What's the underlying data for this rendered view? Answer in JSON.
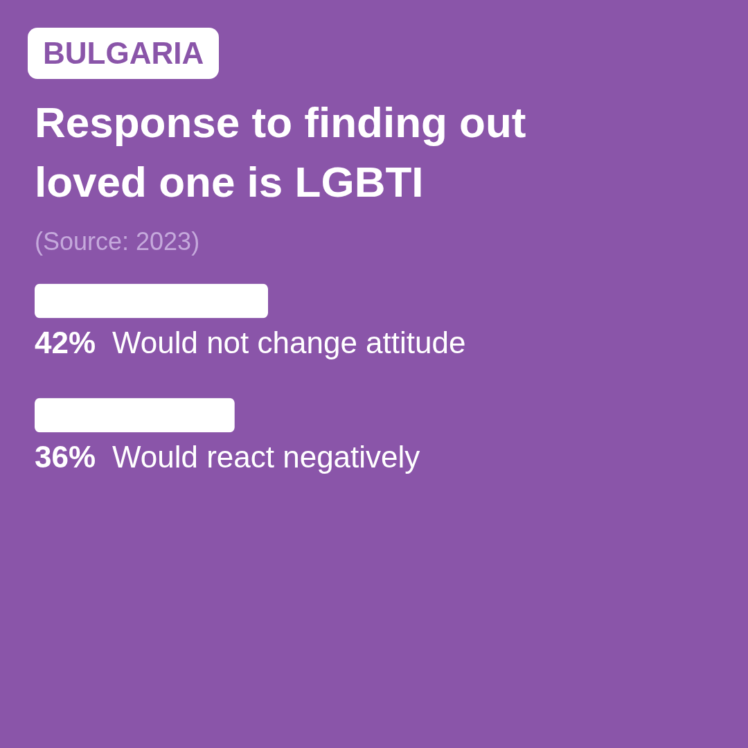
{
  "chart_data": {
    "type": "bar",
    "orientation": "horizontal",
    "title": "Response to finding out loved one is LGBTI",
    "subtitle": "BULGARIA",
    "annotations": [
      "(Source: 2023)"
    ],
    "categories": [
      "Would not change attitude",
      "Would react negatively"
    ],
    "values": [
      42,
      36
    ],
    "color": "#ffffff",
    "value_labels": [
      "42%",
      "36%"
    ],
    "tick_labels": false
  }
}
